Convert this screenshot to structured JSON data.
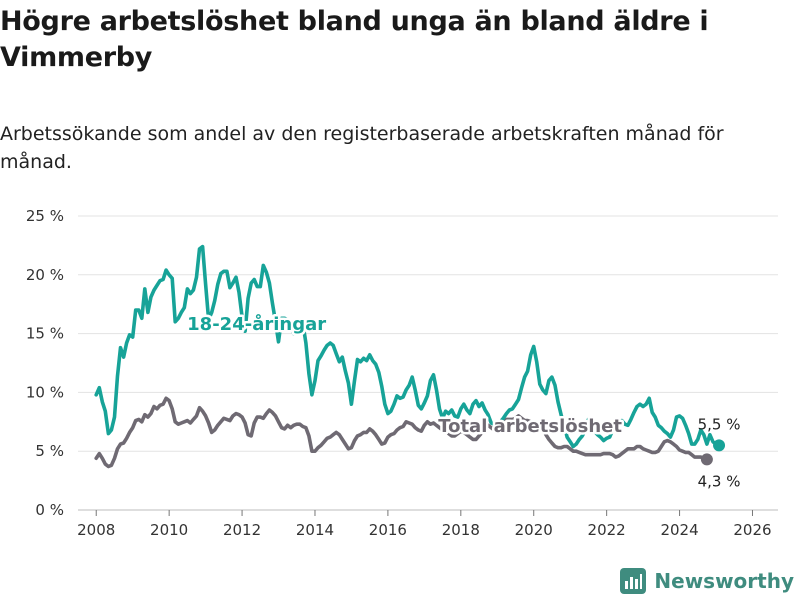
{
  "title": "Högre arbetslöshet bland unga än bland äldre i Vimmerby",
  "subtitle": "Arbetssökande som andel av den registerbaserade arbetskraften månad för månad.",
  "brand": {
    "name": "Newsworthy",
    "icon": "chart-bar-icon",
    "color": "#3f8c7f"
  },
  "chart_data": {
    "type": "line",
    "x_start": 2008.0,
    "x_step_years": 0.08333,
    "xlim": [
      2007.5,
      2026.7
    ],
    "ylim": [
      0,
      25
    ],
    "y_ticks": [
      0,
      5,
      10,
      15,
      20,
      25
    ],
    "y_tick_labels": [
      "0 %",
      "5 %",
      "10 %",
      "15 %",
      "20 %",
      "25 %"
    ],
    "x_ticks": [
      2008,
      2010,
      2012,
      2014,
      2016,
      2018,
      2020,
      2022,
      2024,
      2026
    ],
    "x_tick_labels": [
      "2008",
      "2010",
      "2012",
      "2014",
      "2016",
      "2018",
      "2020",
      "2022",
      "2024",
      "2026"
    ],
    "grid": "horizontal",
    "series": [
      {
        "name": "18-24-åringar",
        "color": "#17a398",
        "label_at": [
          2012.4,
          15.3
        ],
        "end_label": "5,5 %",
        "values": [
          9.8,
          10.4,
          9.2,
          8.4,
          6.5,
          6.8,
          7.9,
          11.4,
          13.8,
          13.0,
          14.2,
          14.9,
          14.7,
          17.0,
          17.0,
          16.3,
          18.8,
          16.8,
          18.1,
          18.7,
          19.1,
          19.5,
          19.6,
          20.4,
          20.0,
          19.7,
          16.0,
          16.3,
          16.8,
          17.2,
          18.8,
          18.4,
          18.7,
          19.8,
          22.2,
          22.4,
          19.2,
          16.2,
          16.8,
          17.8,
          19.2,
          20.1,
          20.3,
          20.3,
          18.9,
          19.3,
          19.8,
          18.5,
          16.4,
          15.2,
          18.0,
          19.3,
          19.6,
          19.0,
          19.0,
          20.8,
          20.2,
          19.3,
          17.6,
          16.0,
          14.3,
          16.3,
          16.3,
          16.2,
          15.9,
          15.0,
          15.8,
          15.7,
          15.9,
          14.2,
          11.6,
          9.8,
          11.0,
          12.7,
          13.1,
          13.6,
          14.0,
          14.2,
          14.0,
          13.3,
          12.6,
          13.0,
          11.8,
          10.8,
          9.0,
          11.0,
          12.8,
          12.6,
          12.9,
          12.7,
          13.2,
          12.7,
          12.4,
          11.7,
          10.5,
          9.0,
          8.2,
          8.4,
          9.0,
          9.7,
          9.5,
          9.6,
          10.2,
          10.6,
          11.3,
          10.2,
          8.9,
          8.6,
          9.1,
          9.7,
          11.0,
          11.5,
          10.2,
          8.6,
          7.8,
          8.4,
          8.2,
          8.5,
          8.0,
          7.9,
          8.6,
          9.0,
          8.5,
          8.2,
          9.0,
          9.3,
          8.8,
          9.1,
          8.5,
          8.1,
          7.4,
          7.3,
          6.8,
          7.5,
          7.8,
          8.2,
          8.5,
          8.6,
          9.0,
          9.4,
          10.4,
          11.3,
          11.8,
          13.2,
          13.9,
          12.6,
          10.7,
          10.2,
          9.9,
          11.0,
          11.3,
          10.6,
          9.2,
          8.1,
          7.2,
          6.2,
          5.8,
          5.4,
          5.6,
          6.0,
          6.3,
          6.8,
          7.7,
          7.3,
          6.7,
          6.4,
          6.2,
          5.9,
          6.1,
          6.2,
          6.8,
          7.0,
          7.4,
          7.6,
          7.3,
          7.2,
          7.7,
          8.3,
          8.8,
          9.0,
          8.8,
          9.0,
          9.5,
          8.3,
          7.9,
          7.2,
          7.0,
          6.7,
          6.5,
          6.2,
          6.8,
          7.9,
          8.0,
          7.8,
          7.2,
          6.5,
          5.6,
          5.6,
          6.0,
          6.8,
          6.4,
          5.6,
          6.4,
          5.8,
          5.6,
          5.5
        ]
      },
      {
        "name": "Total arbetslöshet",
        "color": "#6f6a73",
        "label_at": [
          2019.9,
          6.65
        ],
        "end_label": "4,3 %",
        "values": [
          4.4,
          4.8,
          4.4,
          3.9,
          3.7,
          3.8,
          4.4,
          5.2,
          5.6,
          5.7,
          6.1,
          6.6,
          7.0,
          7.6,
          7.7,
          7.5,
          8.1,
          7.9,
          8.2,
          8.8,
          8.6,
          8.9,
          9.0,
          9.5,
          9.3,
          8.6,
          7.5,
          7.3,
          7.4,
          7.5,
          7.6,
          7.4,
          7.7,
          8.0,
          8.7,
          8.4,
          8.0,
          7.4,
          6.6,
          6.8,
          7.2,
          7.5,
          7.8,
          7.7,
          7.6,
          8.0,
          8.2,
          8.1,
          7.9,
          7.4,
          6.4,
          6.3,
          7.4,
          7.9,
          7.9,
          7.8,
          8.2,
          8.5,
          8.3,
          8.0,
          7.5,
          7.0,
          6.9,
          7.2,
          7.0,
          7.2,
          7.3,
          7.3,
          7.1,
          7.0,
          6.3,
          5.0,
          5.0,
          5.3,
          5.5,
          5.8,
          6.1,
          6.2,
          6.4,
          6.6,
          6.4,
          6.0,
          5.6,
          5.2,
          5.3,
          5.9,
          6.3,
          6.4,
          6.6,
          6.6,
          6.9,
          6.7,
          6.4,
          6.0,
          5.6,
          5.7,
          6.2,
          6.4,
          6.5,
          6.8,
          7.0,
          7.1,
          7.5,
          7.4,
          7.3,
          7.0,
          6.8,
          6.7,
          7.2,
          7.5,
          7.3,
          7.4,
          7.2,
          7.0,
          6.8,
          6.9,
          6.5,
          6.3,
          6.3,
          6.5,
          6.7,
          6.6,
          6.4,
          6.2,
          6.0,
          6.0,
          6.3,
          6.6,
          6.9,
          7.2,
          7.0,
          6.8,
          6.8,
          7.1,
          7.5,
          7.7,
          7.7,
          7.7,
          7.8,
          8.0,
          7.8,
          7.6,
          7.6,
          7.5,
          7.2,
          7.2,
          7.0,
          6.9,
          6.4,
          6.0,
          5.7,
          5.4,
          5.3,
          5.3,
          5.4,
          5.4,
          5.2,
          5.0,
          5.0,
          4.9,
          4.8,
          4.7,
          4.7,
          4.7,
          4.7,
          4.7,
          4.7,
          4.8,
          4.8,
          4.8,
          4.7,
          4.5,
          4.6,
          4.8,
          5.0,
          5.2,
          5.2,
          5.2,
          5.4,
          5.4,
          5.2,
          5.1,
          5.0,
          4.9,
          4.9,
          5.0,
          5.4,
          5.8,
          5.9,
          5.8,
          5.6,
          5.4,
          5.1,
          5.0,
          4.9,
          4.9,
          4.7,
          4.5,
          4.5,
          4.5,
          4.4,
          4.3
        ]
      }
    ]
  }
}
